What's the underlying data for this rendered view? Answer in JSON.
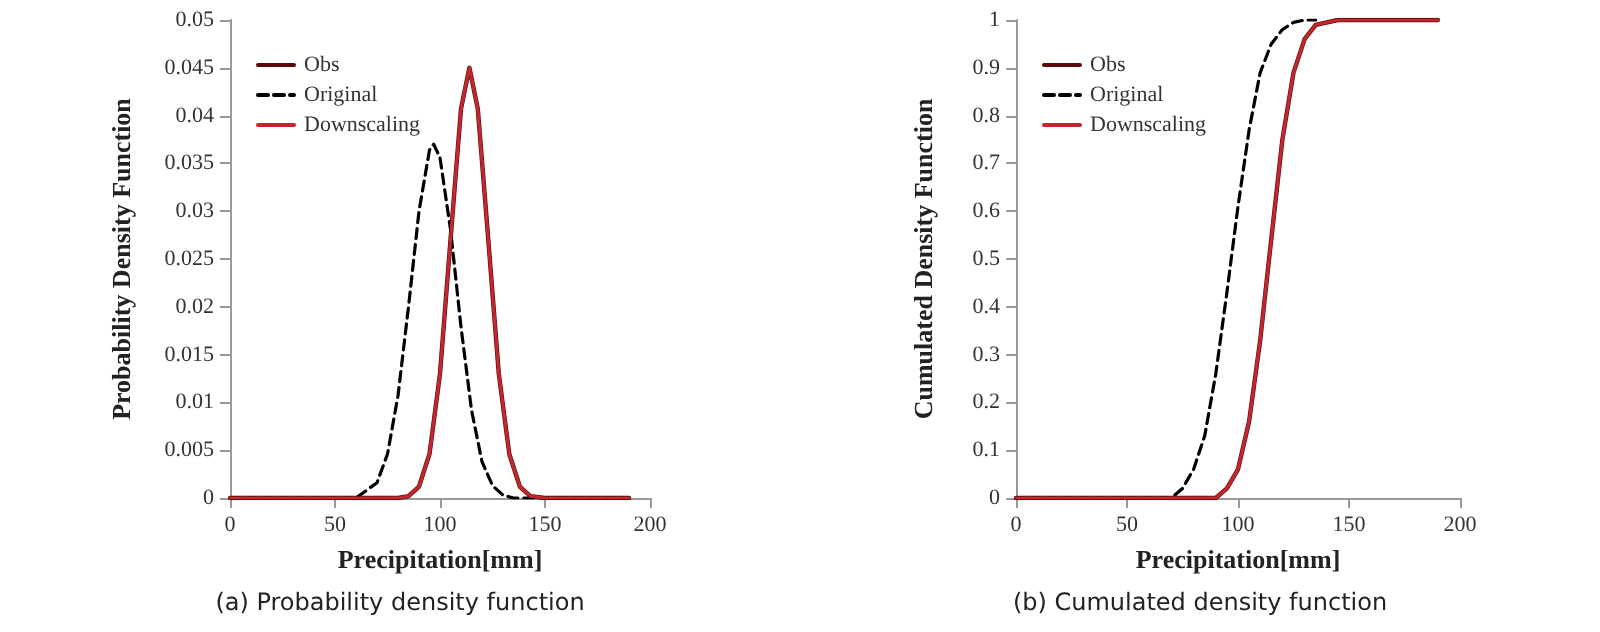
{
  "chart_data": [
    {
      "type": "line",
      "annotations": [
        "(a) Probability density function"
      ],
      "xlabel": "Precipitation[mm]",
      "ylabel": "Probability Density Function",
      "xlim": [
        0,
        200
      ],
      "xticks": [
        0,
        50,
        100,
        150,
        200
      ],
      "ylim": [
        0,
        0.05
      ],
      "yticks": [
        0,
        0.005,
        0.01,
        0.015,
        0.02,
        0.025,
        0.03,
        0.035,
        0.04,
        0.045,
        0.05
      ],
      "grid": false,
      "legend": "top left",
      "marker": "none",
      "series": [
        {
          "name": "Obs",
          "color": "#5a0a0a",
          "line_style": "solid",
          "x": [
            0,
            80,
            85,
            90,
            95,
            100,
            105,
            110,
            114,
            118,
            123,
            128,
            133,
            138,
            143,
            150,
            190
          ],
          "values": [
            0,
            0,
            0.0002,
            0.0012,
            0.0046,
            0.013,
            0.027,
            0.0407,
            0.045,
            0.0407,
            0.027,
            0.013,
            0.0046,
            0.0012,
            0.0002,
            0,
            0
          ]
        },
        {
          "name": "Original",
          "color": "#000000",
          "line_style": "dashed",
          "x": [
            0,
            60,
            70,
            75,
            80,
            85,
            90,
            95,
            97,
            100,
            105,
            110,
            115,
            120,
            125,
            130,
            135,
            140,
            190
          ],
          "values": [
            0,
            0,
            0.0016,
            0.0046,
            0.0107,
            0.02,
            0.03,
            0.0364,
            0.037,
            0.0356,
            0.0281,
            0.0179,
            0.0092,
            0.0038,
            0.0013,
            0.0003,
            0,
            0,
            0
          ]
        },
        {
          "name": "Downscaling",
          "color": "#c0282d",
          "line_style": "solid",
          "x": [
            0,
            80,
            85,
            90,
            95,
            100,
            105,
            110,
            114,
            118,
            123,
            128,
            133,
            138,
            143,
            150,
            190
          ],
          "values": [
            0,
            0,
            0.0002,
            0.0012,
            0.0046,
            0.013,
            0.027,
            0.0407,
            0.045,
            0.0407,
            0.027,
            0.013,
            0.0046,
            0.0012,
            0.0002,
            0,
            0
          ]
        }
      ]
    },
    {
      "type": "line",
      "annotations": [
        "(b) Cumulated density function"
      ],
      "xlabel": "Precipitation[mm]",
      "ylabel": "Cumulated Density Function",
      "xlim": [
        0,
        200
      ],
      "xticks": [
        0,
        50,
        100,
        150,
        200
      ],
      "ylim": [
        0,
        1
      ],
      "yticks": [
        0,
        0.1,
        0.2,
        0.3,
        0.4,
        0.5,
        0.6,
        0.7,
        0.8,
        0.9,
        1
      ],
      "grid": false,
      "legend": "top left",
      "marker": "none",
      "series": [
        {
          "name": "Obs",
          "color": "#5a0a0a",
          "line_style": "solid",
          "x": [
            0,
            90,
            95,
            100,
            105,
            110,
            114,
            120,
            125,
            130,
            135,
            145,
            190
          ],
          "values": [
            0,
            0,
            0.02,
            0.06,
            0.16,
            0.33,
            0.5,
            0.75,
            0.89,
            0.96,
            0.99,
            1,
            1
          ]
        },
        {
          "name": "Original",
          "color": "#000000",
          "line_style": "dashed",
          "x": [
            0,
            70,
            75,
            80,
            85,
            90,
            95,
            100,
            105,
            110,
            115,
            120,
            125,
            130,
            135
          ],
          "values": [
            0,
            0,
            0.02,
            0.06,
            0.13,
            0.26,
            0.43,
            0.61,
            0.77,
            0.89,
            0.95,
            0.98,
            0.995,
            1,
            1
          ]
        },
        {
          "name": "Downscaling",
          "color": "#c0282d",
          "line_style": "solid",
          "x": [
            0,
            90,
            95,
            100,
            105,
            110,
            114,
            120,
            125,
            130,
            135,
            145,
            190
          ],
          "values": [
            0,
            0,
            0.02,
            0.06,
            0.16,
            0.33,
            0.5,
            0.75,
            0.89,
            0.96,
            0.99,
            1,
            1
          ]
        }
      ]
    }
  ]
}
